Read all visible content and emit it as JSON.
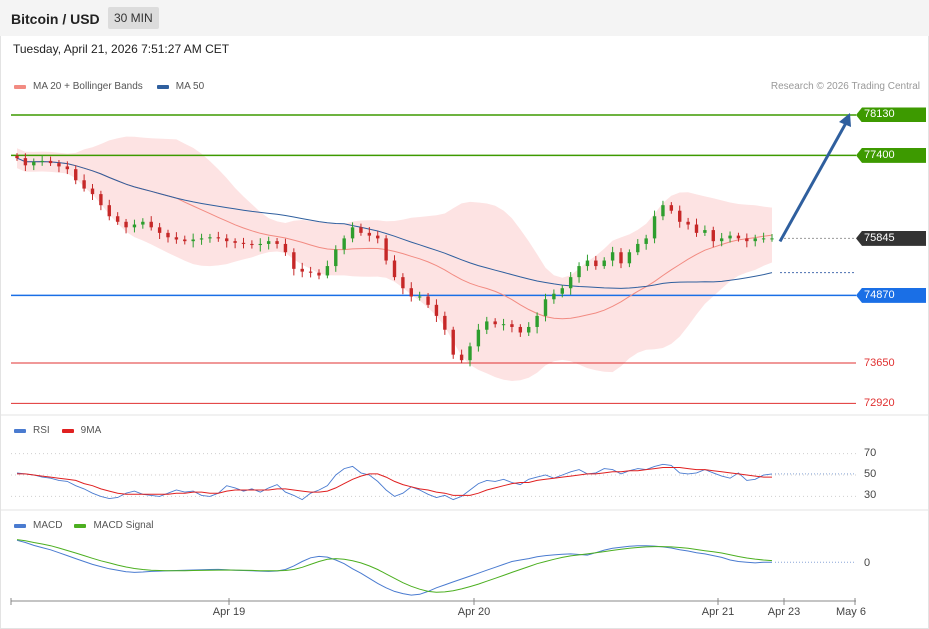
{
  "header": {
    "title": "Bitcoin / USD",
    "timeframe": "30 MIN"
  },
  "datetime": "Tuesday, April 21, 2026 7:51:27 AM CET",
  "legend_main": [
    {
      "label": "MA 20 + Bollinger Bands",
      "color": "#f28b82"
    },
    {
      "label": "MA 50",
      "color": "#2f5f9e"
    }
  ],
  "credit": "Research © 2026 Trading Central",
  "legend_rsi": [
    {
      "label": "RSI",
      "color": "#4a7bd0"
    },
    {
      "label": "9MA",
      "color": "#e02020"
    }
  ],
  "legend_macd": [
    {
      "label": "MACD",
      "color": "#4a7bd0"
    },
    {
      "label": "MACD Signal",
      "color": "#4caf20"
    }
  ],
  "chart_data": [
    {
      "type": "candlestick",
      "panel": "price",
      "ylim": [
        72800,
        78400
      ],
      "current_price": "75845",
      "levels": [
        {
          "label": "78130",
          "value": 78130,
          "color": "#3d9a00",
          "style": "tag"
        },
        {
          "label": "77400",
          "value": 77400,
          "color": "#3d9a00",
          "style": "tag"
        },
        {
          "label": "74870",
          "value": 74870,
          "color": "#1a6fe6",
          "style": "tag"
        },
        {
          "label": "73650",
          "value": 73650,
          "color": "#e03030",
          "style": "text"
        },
        {
          "label": "72920",
          "value": 72920,
          "color": "#e03030",
          "style": "text"
        }
      ],
      "close": [
        77350,
        77220,
        77280,
        77300,
        77260,
        77200,
        77150,
        76950,
        76800,
        76700,
        76500,
        76300,
        76200,
        76100,
        76150,
        76200,
        76100,
        76000,
        75920,
        75880,
        75850,
        75880,
        75900,
        75920,
        75900,
        75850,
        75820,
        75800,
        75780,
        75800,
        75850,
        75800,
        75650,
        75350,
        75300,
        75280,
        75230,
        75400,
        75700,
        75900,
        76100,
        76000,
        75950,
        75900,
        75500,
        75200,
        75000,
        74850,
        74850,
        74700,
        74500,
        74250,
        73800,
        73700,
        73950,
        74250,
        74400,
        74350,
        74350,
        74300,
        74200,
        74300,
        74500,
        74800,
        74900,
        75000,
        75200,
        75400,
        75500,
        75400,
        75500,
        75650,
        75450,
        75650,
        75800,
        75900,
        76300,
        76500,
        76400,
        76200,
        76150,
        76000,
        76050,
        75850,
        75900,
        75950,
        75900,
        75850,
        75900,
        75900,
        75900
      ],
      "forecast": [
        75845,
        78130
      ],
      "forecast_label": "78130"
    },
    {
      "type": "line",
      "panel": "rsi",
      "ylim": [
        22,
        78
      ],
      "ticks": [
        "70",
        "50",
        "30"
      ],
      "series": [
        {
          "name": "RSI",
          "values": [
            52,
            51,
            50,
            48,
            47,
            45,
            44,
            40,
            37,
            33,
            30,
            28,
            29,
            33,
            35,
            32,
            31,
            30,
            33,
            36,
            34,
            35,
            31,
            30,
            33,
            40,
            38,
            35,
            37,
            34,
            38,
            41,
            34,
            31,
            27,
            33,
            36,
            40,
            50,
            56,
            58,
            52,
            50,
            44,
            36,
            30,
            33,
            39,
            36,
            32,
            29,
            31,
            27,
            30,
            36,
            42,
            45,
            44,
            46,
            43,
            41,
            46,
            48,
            50,
            47,
            50,
            53,
            55,
            51,
            52,
            56,
            55,
            51,
            54,
            56,
            55,
            58,
            60,
            59,
            52,
            51,
            52,
            55,
            52,
            49,
            47,
            52,
            45,
            46,
            50,
            51
          ]
        },
        {
          "name": "9MA",
          "values": [
            51,
            51,
            50,
            49,
            48,
            47,
            46,
            45,
            42,
            40,
            37,
            35,
            33,
            32,
            32,
            32,
            32,
            32,
            32,
            33,
            33,
            34,
            34,
            33,
            33,
            35,
            36,
            36,
            36,
            36,
            36,
            37,
            37,
            36,
            35,
            34,
            34,
            35,
            38,
            42,
            46,
            49,
            51,
            51,
            48,
            44,
            41,
            39,
            37,
            36,
            34,
            33,
            31,
            31,
            31,
            33,
            36,
            38,
            40,
            42,
            43,
            43,
            45,
            46,
            47,
            48,
            49,
            50,
            51,
            51,
            52,
            53,
            53,
            54,
            54,
            55,
            56,
            57,
            57,
            57,
            56,
            55,
            55,
            54,
            53,
            52,
            51,
            50,
            49,
            48,
            48
          ]
        }
      ]
    },
    {
      "type": "line",
      "panel": "macd",
      "ylim": [
        -230,
        215
      ],
      "ticks": [
        "0"
      ],
      "series": [
        {
          "name": "MACD",
          "values": [
            165,
            150,
            130,
            115,
            100,
            80,
            60,
            40,
            20,
            0,
            -15,
            -30,
            -40,
            -50,
            -55,
            -52,
            -48,
            -46,
            -44,
            -42,
            -40,
            -38,
            -36,
            -35,
            -34,
            -36,
            -40,
            -42,
            -44,
            -46,
            -48,
            -45,
            -35,
            -10,
            20,
            45,
            55,
            50,
            30,
            5,
            -30,
            -60,
            -95,
            -130,
            -160,
            -185,
            -200,
            -210,
            -205,
            -185,
            -160,
            -140,
            -120,
            -100,
            -80,
            -60,
            -40,
            -20,
            0,
            20,
            30,
            40,
            52,
            60,
            65,
            70,
            72,
            68,
            64,
            80,
            98,
            110,
            118,
            124,
            128,
            128,
            125,
            120,
            112,
            100,
            92,
            80,
            72,
            60,
            48,
            30,
            20,
            15,
            10,
            15,
            15
          ]
        },
        {
          "name": "MACD Signal",
          "values": [
            170,
            162,
            150,
            140,
            128,
            112,
            95,
            78,
            60,
            42,
            25,
            10,
            -5,
            -18,
            -28,
            -35,
            -40,
            -42,
            -44,
            -44,
            -43,
            -42,
            -41,
            -40,
            -39,
            -38,
            -39,
            -40,
            -41,
            -43,
            -44,
            -44,
            -42,
            -35,
            -20,
            0,
            20,
            35,
            40,
            35,
            25,
            10,
            -10,
            -35,
            -65,
            -95,
            -125,
            -150,
            -170,
            -185,
            -190,
            -188,
            -180,
            -168,
            -152,
            -135,
            -115,
            -95,
            -75,
            -55,
            -35,
            -15,
            5,
            20,
            35,
            48,
            58,
            65,
            72,
            80,
            88,
            96,
            104,
            110,
            116,
            120,
            122,
            122,
            120,
            116,
            110,
            102,
            94,
            86,
            78,
            66,
            54,
            44,
            36,
            30,
            26
          ]
        }
      ]
    },
    {
      "type": "axis",
      "panel": "x",
      "ticks": [
        "Apr 19",
        "Apr 20",
        "Apr 21",
        "Apr 23",
        "May 6"
      ]
    }
  ]
}
